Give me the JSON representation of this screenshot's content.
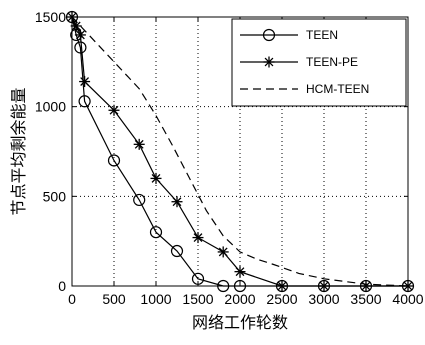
{
  "chart_data": {
    "type": "line",
    "title": "",
    "xlabel": "网络工作轮数",
    "ylabel": "节点平均剩余能量",
    "xlim": [
      0,
      4000
    ],
    "ylim": [
      0,
      1500
    ],
    "xticks": [
      0,
      500,
      1000,
      1500,
      2000,
      2500,
      3000,
      3500,
      4000
    ],
    "yticks": [
      0,
      500,
      1000,
      1500
    ],
    "grid": true,
    "legend_position": "top-right",
    "series": [
      {
        "name": "TEEN",
        "style": "solid",
        "marker": "circle",
        "points": [
          [
            0,
            1500
          ],
          [
            50,
            1400
          ],
          [
            100,
            1330
          ],
          [
            150,
            1030
          ],
          [
            500,
            700
          ],
          [
            800,
            480
          ],
          [
            1000,
            300
          ],
          [
            1250,
            195
          ],
          [
            1500,
            40
          ],
          [
            1800,
            0
          ],
          [
            2000,
            0
          ],
          [
            2500,
            0
          ],
          [
            3000,
            0
          ],
          [
            3500,
            0
          ],
          [
            4000,
            0
          ]
        ]
      },
      {
        "name": "TEEN-PE",
        "style": "solid",
        "marker": "star",
        "points": [
          [
            0,
            1500
          ],
          [
            50,
            1450
          ],
          [
            100,
            1400
          ],
          [
            150,
            1140
          ],
          [
            500,
            980
          ],
          [
            800,
            790
          ],
          [
            1000,
            600
          ],
          [
            1250,
            470
          ],
          [
            1500,
            270
          ],
          [
            1800,
            190
          ],
          [
            2000,
            80
          ],
          [
            2500,
            0
          ],
          [
            3000,
            0
          ],
          [
            3500,
            0
          ],
          [
            4000,
            0
          ]
        ]
      },
      {
        "name": "HCM-TEEN",
        "style": "dashed",
        "marker": "none",
        "points": [
          [
            0,
            1500
          ],
          [
            200,
            1400
          ],
          [
            500,
            1250
          ],
          [
            800,
            1100
          ],
          [
            1000,
            950
          ],
          [
            1200,
            780
          ],
          [
            1400,
            600
          ],
          [
            1600,
            420
          ],
          [
            1800,
            280
          ],
          [
            2000,
            190
          ],
          [
            2200,
            150
          ],
          [
            2400,
            120
          ],
          [
            2700,
            70
          ],
          [
            3000,
            40
          ],
          [
            3500,
            10
          ],
          [
            4000,
            0
          ]
        ]
      }
    ]
  }
}
